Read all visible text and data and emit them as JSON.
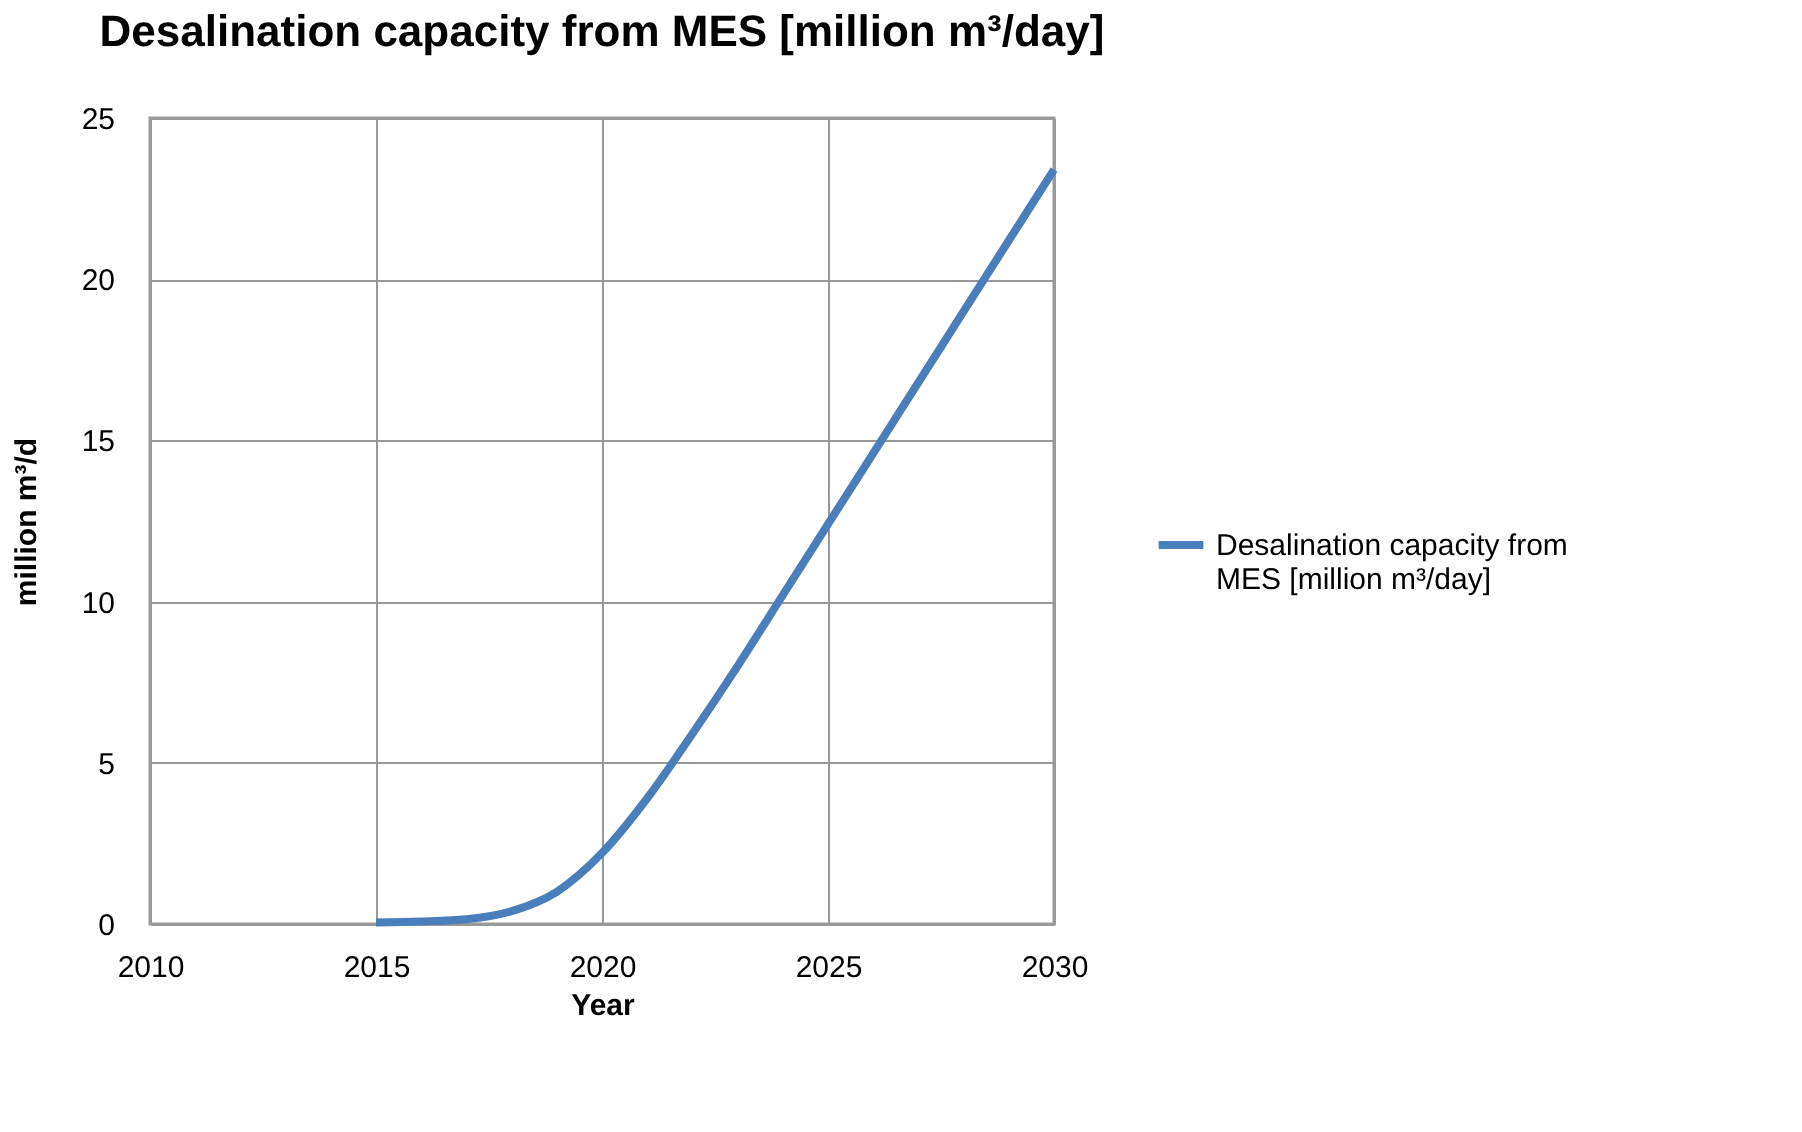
{
  "chart_data": {
    "type": "line",
    "title": "Desalination capacity from MES [million m³/day]",
    "xlabel": "Year",
    "ylabel": "million m³/d",
    "series": [
      {
        "name": "Desalination capacity from MES [million m³/day]",
        "color": "#4a7ebb",
        "x": [
          2015,
          2016,
          2017,
          2018,
          2019,
          2020,
          2021,
          2022,
          2023,
          2024,
          2025,
          2026,
          2027,
          2028,
          2029,
          2030
        ],
        "values": [
          0.05,
          0.08,
          0.15,
          0.4,
          1.0,
          2.2,
          3.9,
          5.9,
          8.0,
          10.2,
          12.4,
          14.6,
          16.8,
          19.0,
          21.2,
          23.4
        ]
      }
    ],
    "xlim": [
      2010,
      2030
    ],
    "xticks": [
      2010,
      2015,
      2020,
      2025,
      2030
    ],
    "ylim": [
      0,
      25
    ],
    "yticks": [
      0,
      5,
      10,
      15,
      20,
      25
    ],
    "grid": true,
    "legend": "right",
    "marker": "none",
    "line_style": "solid"
  }
}
